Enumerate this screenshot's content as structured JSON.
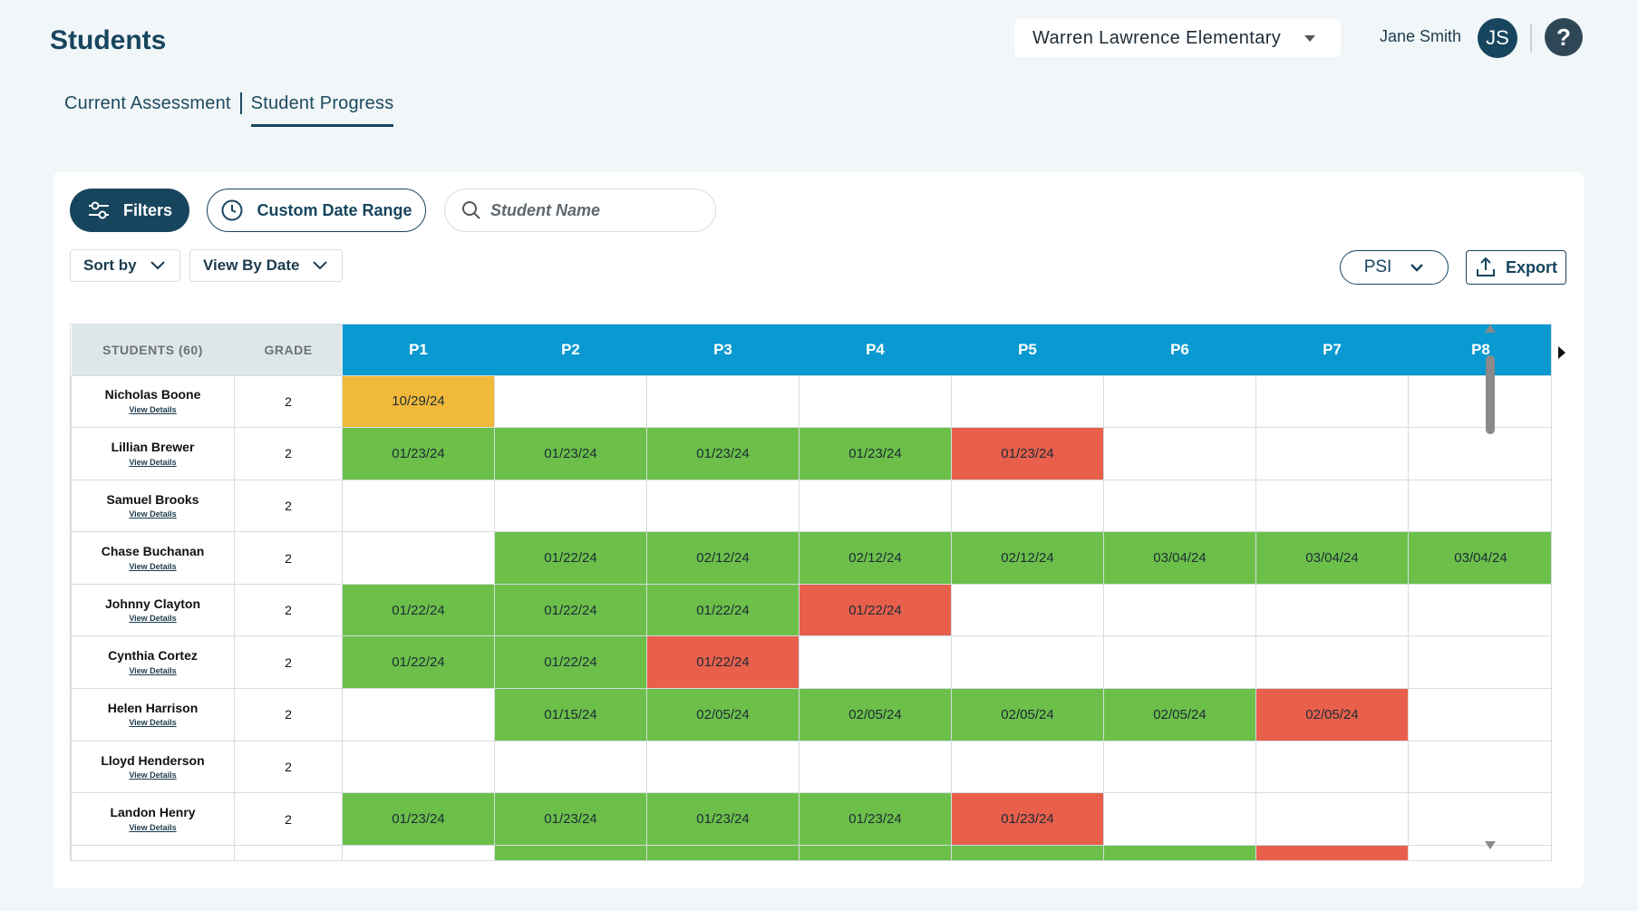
{
  "page": {
    "title": "Students"
  },
  "header": {
    "school": "Warren Lawrence Elementary",
    "user_name": "Jane Smith",
    "user_initials": "JS",
    "help_label": "?"
  },
  "tabs": [
    {
      "label": "Current Assessment",
      "active": false
    },
    {
      "label": "Student Progress",
      "active": true
    }
  ],
  "toolbar": {
    "filters_label": "Filters",
    "date_range_label": "Custom Date Range",
    "search_placeholder": "Student Name",
    "sort_label": "Sort by",
    "view_label": "View By Date",
    "psi_label": "PSI",
    "export_label": "Export"
  },
  "table": {
    "students_header": "STUDENTS (60)",
    "grade_header": "GRADE",
    "view_details_label": "View Details",
    "columns": [
      "P1",
      "P2",
      "P3",
      "P4",
      "P5",
      "P6",
      "P7",
      "P8"
    ],
    "rows": [
      {
        "name": "Nicholas Boone",
        "grade": "2",
        "cells": [
          [
            "10/29/24",
            "y"
          ],
          [
            "",
            "e"
          ],
          [
            "",
            "e"
          ],
          [
            "",
            "e"
          ],
          [
            "",
            "e"
          ],
          [
            "",
            "e"
          ],
          [
            "",
            "e"
          ],
          [
            "",
            "e"
          ]
        ]
      },
      {
        "name": "Lillian Brewer",
        "grade": "2",
        "cells": [
          [
            "01/23/24",
            "g"
          ],
          [
            "01/23/24",
            "g"
          ],
          [
            "01/23/24",
            "g"
          ],
          [
            "01/23/24",
            "g"
          ],
          [
            "01/23/24",
            "r"
          ],
          [
            "",
            "e"
          ],
          [
            "",
            "e"
          ],
          [
            "",
            "e"
          ]
        ]
      },
      {
        "name": "Samuel Brooks",
        "grade": "2",
        "cells": [
          [
            "",
            "e"
          ],
          [
            "",
            "e"
          ],
          [
            "",
            "e"
          ],
          [
            "",
            "e"
          ],
          [
            "",
            "e"
          ],
          [
            "",
            "e"
          ],
          [
            "",
            "e"
          ],
          [
            "",
            "e"
          ]
        ]
      },
      {
        "name": "Chase Buchanan",
        "grade": "2",
        "cells": [
          [
            "",
            "e"
          ],
          [
            "01/22/24",
            "g"
          ],
          [
            "02/12/24",
            "g"
          ],
          [
            "02/12/24",
            "g"
          ],
          [
            "02/12/24",
            "g"
          ],
          [
            "03/04/24",
            "g"
          ],
          [
            "03/04/24",
            "g"
          ],
          [
            "03/04/24",
            "g"
          ]
        ]
      },
      {
        "name": "Johnny Clayton",
        "grade": "2",
        "cells": [
          [
            "01/22/24",
            "g"
          ],
          [
            "01/22/24",
            "g"
          ],
          [
            "01/22/24",
            "g"
          ],
          [
            "01/22/24",
            "r"
          ],
          [
            "",
            "e"
          ],
          [
            "",
            "e"
          ],
          [
            "",
            "e"
          ],
          [
            "",
            "e"
          ]
        ]
      },
      {
        "name": "Cynthia Cortez",
        "grade": "2",
        "cells": [
          [
            "01/22/24",
            "g"
          ],
          [
            "01/22/24",
            "g"
          ],
          [
            "01/22/24",
            "r"
          ],
          [
            "",
            "e"
          ],
          [
            "",
            "e"
          ],
          [
            "",
            "e"
          ],
          [
            "",
            "e"
          ],
          [
            "",
            "e"
          ]
        ]
      },
      {
        "name": "Helen Harrison",
        "grade": "2",
        "cells": [
          [
            "",
            "e"
          ],
          [
            "01/15/24",
            "g"
          ],
          [
            "02/05/24",
            "g"
          ],
          [
            "02/05/24",
            "g"
          ],
          [
            "02/05/24",
            "g"
          ],
          [
            "02/05/24",
            "g"
          ],
          [
            "02/05/24",
            "r"
          ],
          [
            "",
            "e"
          ]
        ]
      },
      {
        "name": "Lloyd Henderson",
        "grade": "2",
        "cells": [
          [
            "",
            "e"
          ],
          [
            "",
            "e"
          ],
          [
            "",
            "e"
          ],
          [
            "",
            "e"
          ],
          [
            "",
            "e"
          ],
          [
            "",
            "e"
          ],
          [
            "",
            "e"
          ],
          [
            "",
            "e"
          ]
        ]
      },
      {
        "name": "Landon Henry",
        "grade": "2",
        "cells": [
          [
            "01/23/24",
            "g"
          ],
          [
            "01/23/24",
            "g"
          ],
          [
            "01/23/24",
            "g"
          ],
          [
            "01/23/24",
            "g"
          ],
          [
            "01/23/24",
            "r"
          ],
          [
            "",
            "e"
          ],
          [
            "",
            "e"
          ],
          [
            "",
            "e"
          ]
        ]
      },
      {
        "name": "",
        "grade": "",
        "cells": [
          [
            "",
            "e"
          ],
          [
            "",
            "g"
          ],
          [
            "",
            "g"
          ],
          [
            "",
            "g"
          ],
          [
            "",
            "g"
          ],
          [
            "",
            "g"
          ],
          [
            "",
            "r"
          ],
          [
            "",
            "e"
          ]
        ]
      }
    ]
  },
  "colors": {
    "pass": "#6cc04a",
    "fail": "#e8604c",
    "pending": "#f1b93a",
    "header_blue": "#0a99d0",
    "brand_dark": "#17455e"
  }
}
